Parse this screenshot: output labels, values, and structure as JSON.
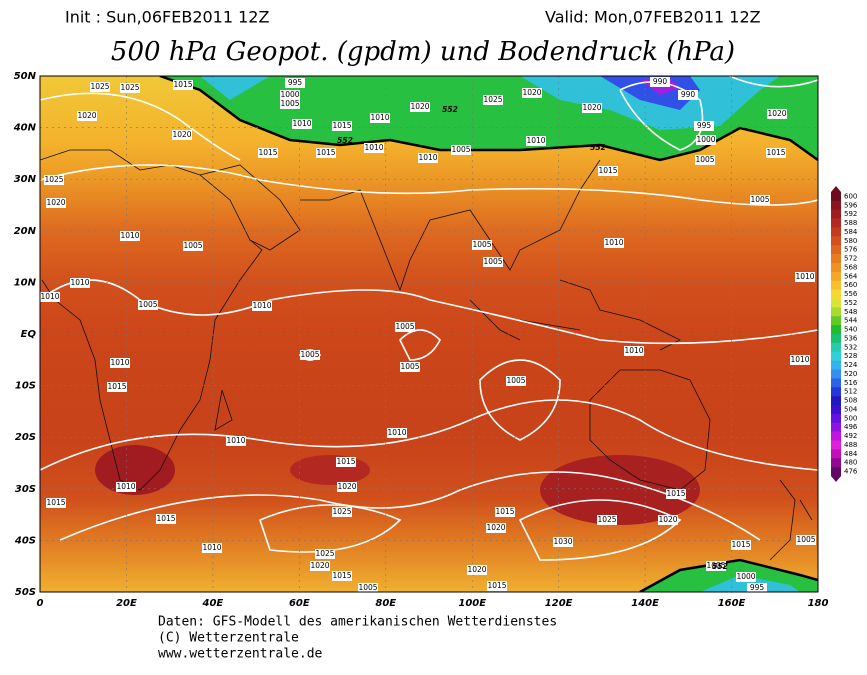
{
  "header": {
    "init": "Init : Sun,06FEB2011 12Z",
    "valid": "Valid: Mon,07FEB2011 12Z",
    "title": "500 hPa Geopot. (gpdm) und Bodendruck (hPa)"
  },
  "map": {
    "lat_labels": [
      "50N",
      "40N",
      "30N",
      "20N",
      "10N",
      "EQ",
      "10S",
      "20S",
      "30S",
      "40S",
      "50S"
    ],
    "lon_labels": [
      "0",
      "20E",
      "40E",
      "60E",
      "80E",
      "100E",
      "120E",
      "140E",
      "160E",
      "180"
    ],
    "isobar_labels": [
      "1025",
      "1025",
      "1015",
      "995",
      "1000",
      "1005",
      "1010",
      "1015",
      "1010",
      "1020",
      "1025",
      "1020",
      "1020",
      "990",
      "990",
      "995",
      "1000",
      "1005",
      "1020",
      "1015",
      "1025",
      "1020",
      "1020",
      "1015",
      "1015",
      "1010",
      "1010",
      "1005",
      "1010",
      "1015",
      "1020",
      "1010",
      "1005",
      "1005",
      "1005",
      "1010",
      "1005",
      "1010",
      "1010",
      "1010",
      "1005",
      "1010",
      "1005",
      "1010",
      "1010",
      "1005",
      "1005",
      "1005",
      "1010",
      "1010",
      "1015",
      "1010",
      "1010",
      "1015",
      "1020",
      "1025",
      "1015",
      "1020",
      "1025",
      "1030",
      "1015",
      "1020",
      "1015",
      "1015",
      "1010",
      "1025",
      "1020",
      "1015",
      "1005",
      "1020",
      "1015",
      "1015",
      "1005",
      "1000",
      "995",
      "1005"
    ],
    "height_labels": [
      "552",
      "552",
      "552",
      "552"
    ]
  },
  "colorbar": {
    "values": [
      600,
      596,
      592,
      588,
      584,
      580,
      576,
      572,
      568,
      564,
      560,
      556,
      552,
      548,
      544,
      540,
      536,
      532,
      528,
      524,
      520,
      516,
      512,
      508,
      504,
      500,
      496,
      492,
      488,
      484,
      480,
      476
    ],
    "colors": [
      "#6e0c1c",
      "#8a1420",
      "#a01c20",
      "#b42822",
      "#c43a1e",
      "#d2501c",
      "#de661e",
      "#e67c20",
      "#ee9222",
      "#f4a826",
      "#f8c02c",
      "#f6d834",
      "#d8e438",
      "#a8dc2c",
      "#60cc22",
      "#20bc30",
      "#18c070",
      "#28ccac",
      "#30d0d8",
      "#30b4f0",
      "#3490f0",
      "#2c64e8",
      "#2438d8",
      "#2018c0",
      "#3c10d0",
      "#6410e0",
      "#9012e0",
      "#c014e0",
      "#e020d8",
      "#c010b8",
      "#900890",
      "#600868"
    ]
  },
  "footer": {
    "lines": [
      "Daten: GFS-Modell des amerikanischen Wetterdienstes",
      "(C) Wetterzentrale",
      "www.wetterzentrale.de"
    ]
  }
}
